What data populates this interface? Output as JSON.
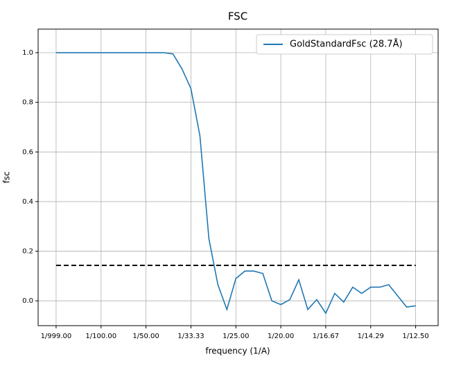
{
  "chart_data": {
    "type": "line",
    "title": "FSC",
    "xlabel": "frequency (1/A)",
    "ylabel": "fsc",
    "x": [
      0,
      0.002,
      0.004,
      0.006,
      0.008,
      0.01,
      0.012,
      0.014,
      0.016,
      0.018,
      0.02,
      0.022,
      0.024,
      0.026,
      0.028,
      0.03,
      0.032,
      0.034,
      0.036,
      0.038,
      0.04,
      0.042,
      0.044,
      0.046,
      0.048,
      0.05,
      0.052,
      0.054,
      0.056,
      0.058,
      0.06,
      0.062,
      0.064,
      0.066,
      0.068,
      0.07,
      0.072,
      0.074,
      0.076,
      0.078,
      0.08
    ],
    "series": [
      {
        "name": "GoldStandardFsc (28.7Å)",
        "color": "#1f77b4",
        "values": [
          1,
          1,
          1,
          1,
          1,
          1,
          1,
          1,
          1,
          1,
          1,
          1,
          1,
          0.995,
          0.935,
          0.855,
          0.665,
          0.25,
          0.065,
          -0.035,
          0.09,
          0.12,
          0.12,
          0.11,
          0,
          -0.015,
          0.005,
          0.085,
          -0.035,
          0.005,
          -0.05,
          0.03,
          -0.005,
          0.055,
          0.03,
          0.055,
          0.055,
          0.065,
          0.02,
          -0.025,
          -0.02
        ]
      }
    ],
    "threshold": {
      "x": [
        0,
        0.08
      ],
      "value": 0.143,
      "color": "#000000"
    },
    "xlim": [
      -0.004,
      0.085
    ],
    "ylim": [
      -0.1,
      1.095
    ],
    "xticks": [
      {
        "value": 0,
        "label": "1/999.00"
      },
      {
        "value": 0.01,
        "label": "1/100.00"
      },
      {
        "value": 0.02,
        "label": "1/50.00"
      },
      {
        "value": 0.03,
        "label": "1/33.33"
      },
      {
        "value": 0.04,
        "label": "1/25.00"
      },
      {
        "value": 0.05,
        "label": "1/20.00"
      },
      {
        "value": 0.06,
        "label": "1/16.67"
      },
      {
        "value": 0.07,
        "label": "1/14.29"
      },
      {
        "value": 0.08,
        "label": "1/12.50"
      }
    ],
    "yticks": [
      {
        "value": 0,
        "label": "0.0"
      },
      0.2,
      0.4,
      0.6,
      0.8,
      {
        "value": 1,
        "label": "1.0"
      }
    ],
    "grid": true,
    "legend": "upper right"
  }
}
